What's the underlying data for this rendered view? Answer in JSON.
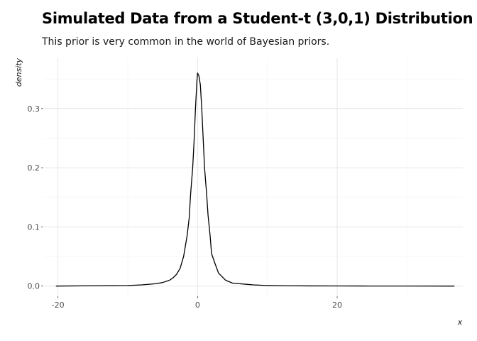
{
  "chart_data": {
    "type": "line",
    "title": "Simulated Data from a Student-t (3,0,1) Distribution",
    "subtitle": "This prior is very common in the world of Bayesian priors.",
    "xlabel": "x",
    "ylabel": "density",
    "xlim": [
      -22,
      38
    ],
    "ylim": [
      -0.016,
      0.385
    ],
    "x_ticks": [
      -20,
      0,
      20
    ],
    "x_tick_labels": [
      "-20",
      "0",
      "20"
    ],
    "y_ticks": [
      0.0,
      0.1,
      0.2,
      0.3
    ],
    "y_tick_labels": [
      "0.0",
      "0.1",
      "0.2",
      "0.3"
    ],
    "grid": true,
    "series": [
      {
        "color": "#000000",
        "points": [
          [
            -20.3,
            0.0
          ],
          [
            -15,
            0.0005
          ],
          [
            -12,
            0.0008
          ],
          [
            -10,
            0.001
          ],
          [
            -8,
            0.002
          ],
          [
            -6,
            0.004
          ],
          [
            -5,
            0.006
          ],
          [
            -4,
            0.01
          ],
          [
            -3.5,
            0.014
          ],
          [
            -3,
            0.02
          ],
          [
            -2.5,
            0.03
          ],
          [
            -2,
            0.05
          ],
          [
            -1.5,
            0.085
          ],
          [
            -1.2,
            0.115
          ],
          [
            -1,
            0.155
          ],
          [
            -0.7,
            0.2
          ],
          [
            -0.5,
            0.245
          ],
          [
            -0.3,
            0.3
          ],
          [
            -0.1,
            0.345
          ],
          [
            0,
            0.36
          ],
          [
            0.2,
            0.355
          ],
          [
            0.4,
            0.34
          ],
          [
            0.6,
            0.3
          ],
          [
            0.8,
            0.25
          ],
          [
            1,
            0.2
          ],
          [
            1.3,
            0.155
          ],
          [
            1.5,
            0.12
          ],
          [
            1.8,
            0.085
          ],
          [
            2,
            0.055
          ],
          [
            2.5,
            0.038
          ],
          [
            3,
            0.022
          ],
          [
            3.5,
            0.016
          ],
          [
            4,
            0.01
          ],
          [
            5,
            0.005
          ],
          [
            6,
            0.004
          ],
          [
            7,
            0.003
          ],
          [
            8,
            0.002
          ],
          [
            10,
            0.001
          ],
          [
            13,
            0.0005
          ],
          [
            16,
            0.0003
          ],
          [
            20,
            0.0002
          ],
          [
            25,
            0.0001
          ],
          [
            30,
            0.0001
          ],
          [
            36.8,
            0.0
          ]
        ]
      }
    ]
  }
}
